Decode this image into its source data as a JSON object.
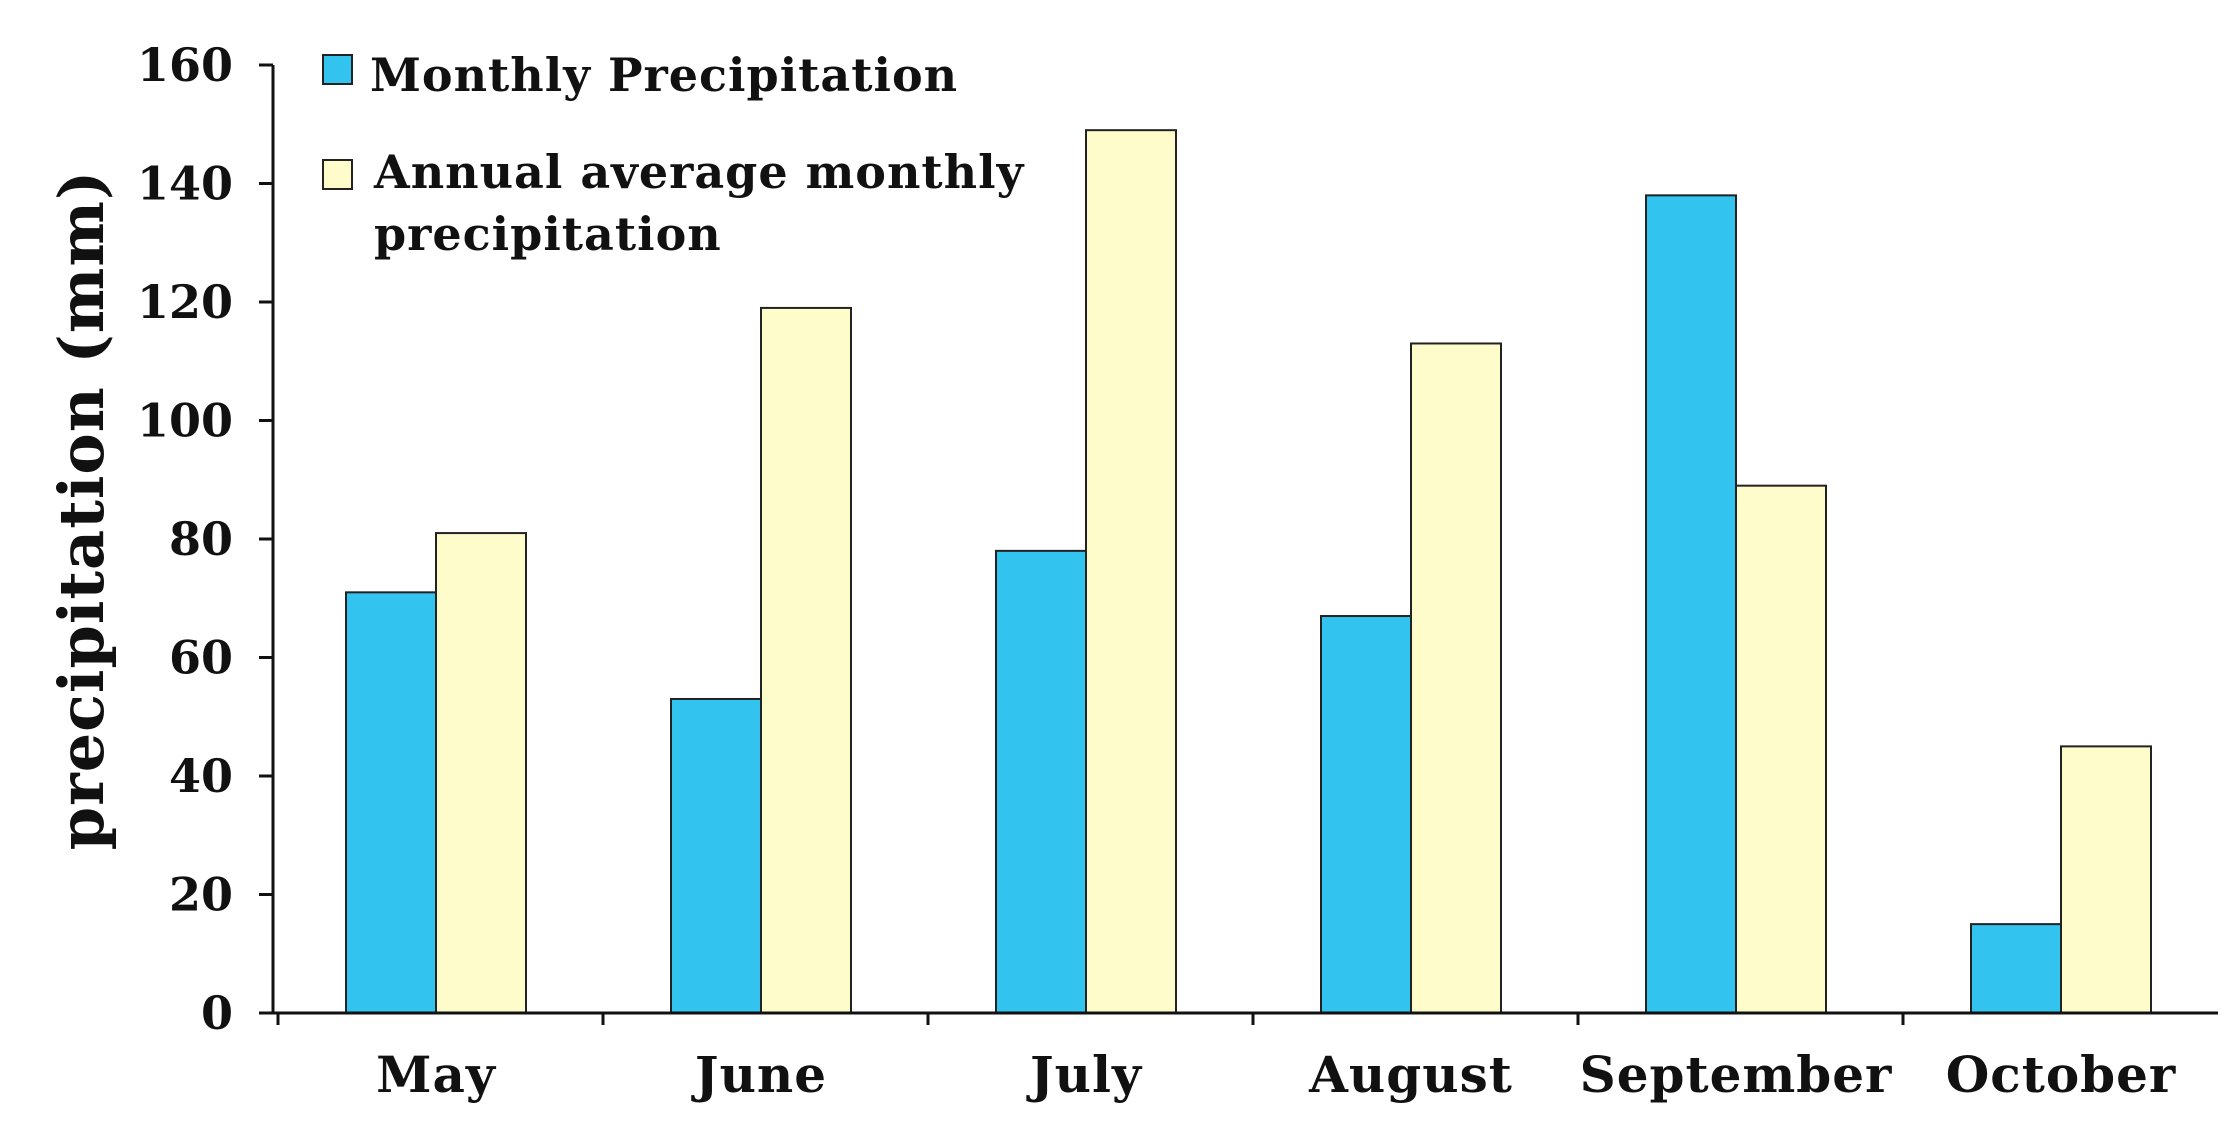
{
  "chart_data": {
    "type": "bar",
    "title": "",
    "xlabel": "",
    "ylabel": "precipitation (mm)",
    "ylim": [
      0,
      160
    ],
    "yticks": [
      0,
      20,
      40,
      60,
      80,
      100,
      120,
      140,
      160
    ],
    "ytick_labels": [
      "0",
      "20",
      "40",
      "60",
      "80",
      "100",
      "120",
      "140",
      "160"
    ],
    "grid": false,
    "legend_position": "top-left",
    "categories": [
      "May",
      "June",
      "July",
      "August",
      "September",
      "October"
    ],
    "series": [
      {
        "name": "Monthly Precipitation",
        "color": "#33c3ef",
        "values": [
          71,
          53,
          78,
          67,
          138,
          15
        ]
      },
      {
        "name": "Annual average monthly precipitation",
        "legend_lines": [
          "Annual average monthly",
          "precipitation"
        ],
        "color": "#fffccb",
        "values": [
          81,
          119,
          149,
          113,
          89,
          45
        ]
      }
    ]
  }
}
